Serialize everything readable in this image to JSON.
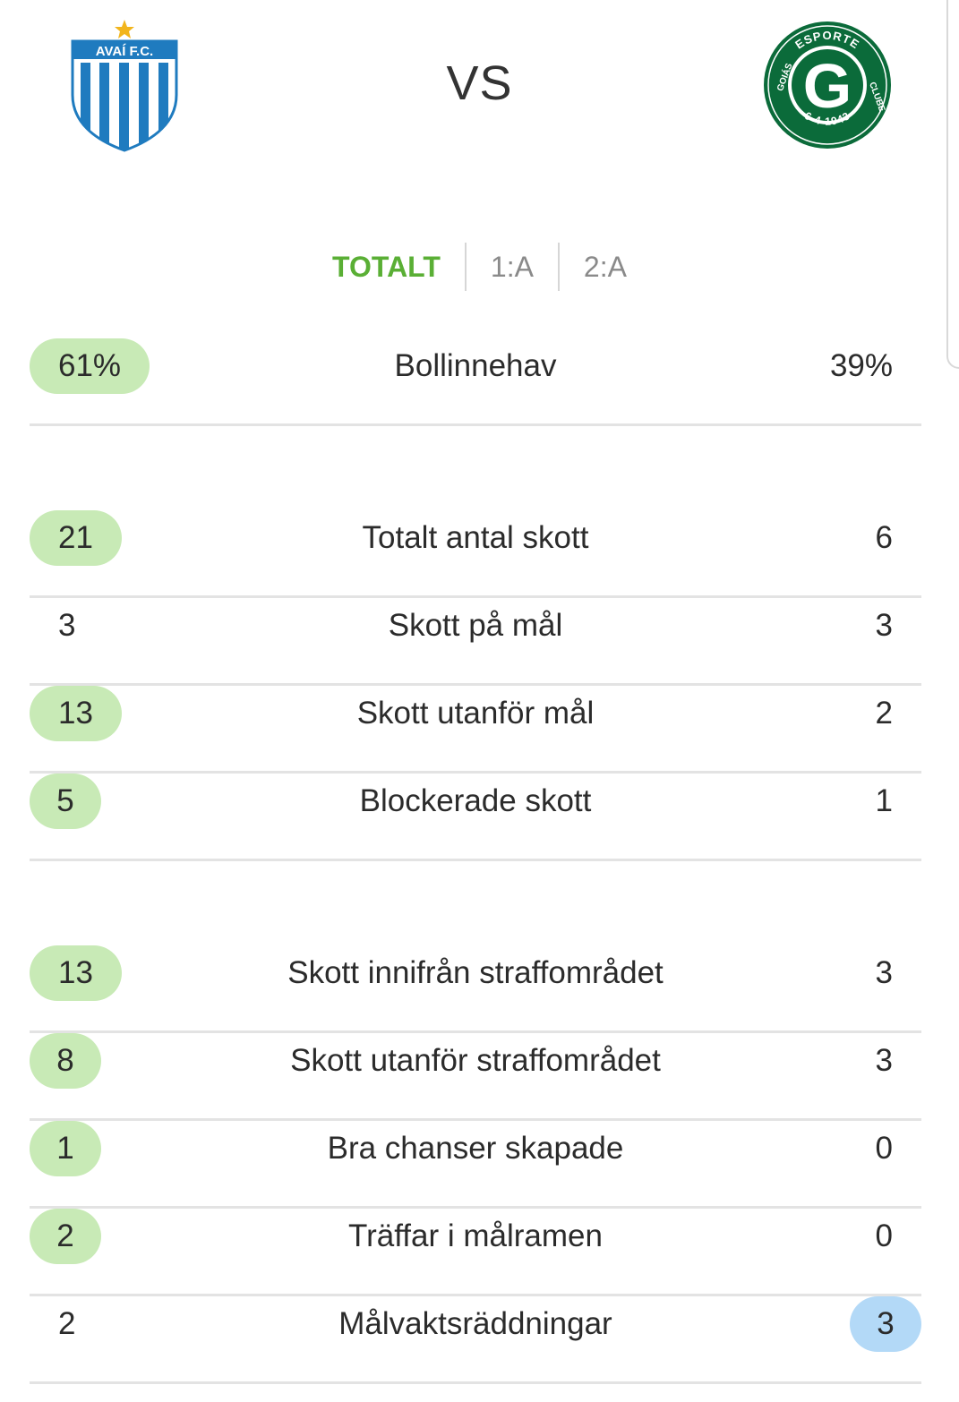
{
  "header": {
    "home_team": {
      "logo_text": "AVAÍ F.C.",
      "stripe_color": "#1f7bbf"
    },
    "vs_label": "VS",
    "away_team": {
      "logo_text_top": "ESPORTE",
      "logo_text_left": "GOIÁS",
      "logo_text_right": "CLUBE",
      "logo_text_bottom": "6-4-1943",
      "logo_letter": "G",
      "brand_color": "#0b6b3a"
    }
  },
  "tabs": [
    {
      "label": "TOTALT",
      "active": true
    },
    {
      "label": "1:A",
      "active": false
    },
    {
      "label": "2:A",
      "active": false
    }
  ],
  "colors": {
    "active_tab": "#5aaf35",
    "home_highlight": "#c8eab6",
    "away_highlight": "#b3d9f7",
    "divider": "#e3e3e3"
  },
  "stats": [
    {
      "label": "Bollinnehav",
      "home": "61%",
      "away": "39%",
      "leader": "home"
    },
    {
      "label": "Totalt antal skott",
      "home": "21",
      "away": "6",
      "leader": "home"
    },
    {
      "label": "Skott på mål",
      "home": "3",
      "away": "3",
      "leader": "none"
    },
    {
      "label": "Skott utanför mål",
      "home": "13",
      "away": "2",
      "leader": "home"
    },
    {
      "label": "Blockerade skott",
      "home": "5",
      "away": "1",
      "leader": "home"
    },
    {
      "label": "Skott innifrån straffområdet",
      "home": "13",
      "away": "3",
      "leader": "home"
    },
    {
      "label": "Skott utanför straffområdet",
      "home": "8",
      "away": "3",
      "leader": "home"
    },
    {
      "label": "Bra chanser skapade",
      "home": "1",
      "away": "0",
      "leader": "home"
    },
    {
      "label": "Träffar i målramen",
      "home": "2",
      "away": "0",
      "leader": "home"
    },
    {
      "label": "Målvaktsräddningar",
      "home": "2",
      "away": "3",
      "leader": "away"
    }
  ]
}
